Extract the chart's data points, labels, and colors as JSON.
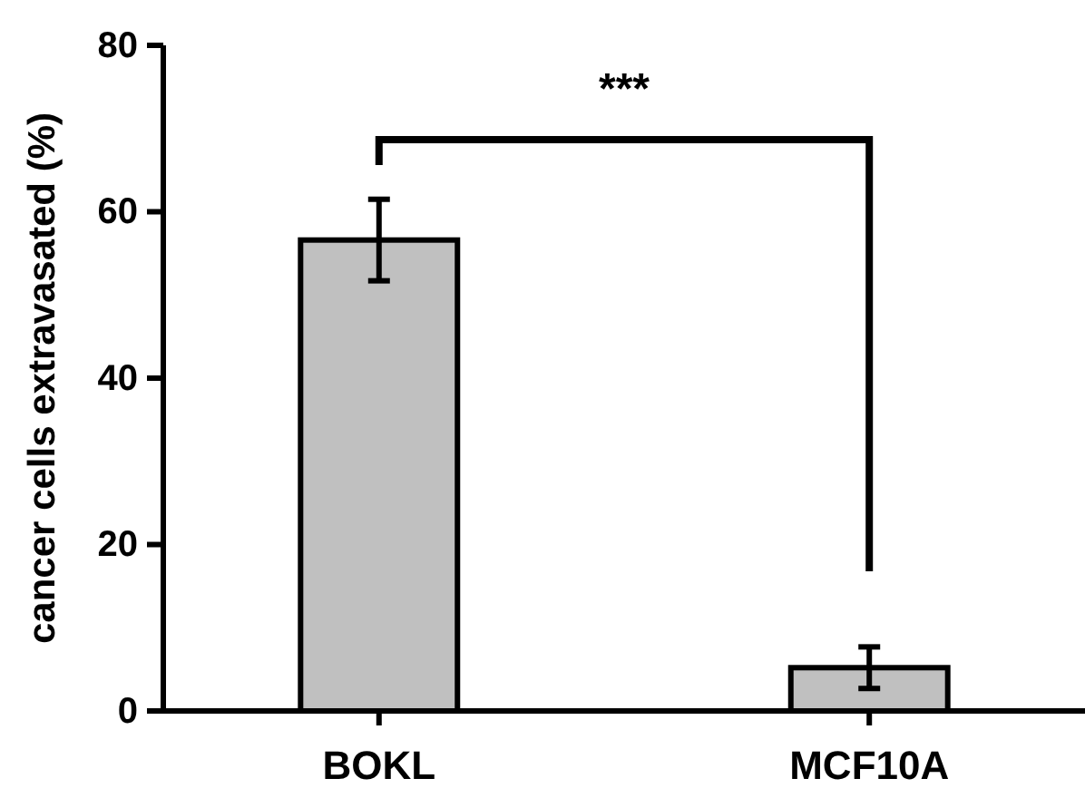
{
  "chart_data": {
    "type": "bar",
    "categories": [
      "BOKL",
      "MCF10A"
    ],
    "values": [
      56.6,
      5.2
    ],
    "errors": [
      4.9,
      2.5
    ],
    "color": "#c0c0c0",
    "ylabel": "cancer cells extravasated (%)",
    "ylim": [
      0,
      80
    ],
    "yticks": [
      0,
      20,
      40,
      60,
      80
    ],
    "grid": false,
    "annotations": [
      "***"
    ]
  }
}
